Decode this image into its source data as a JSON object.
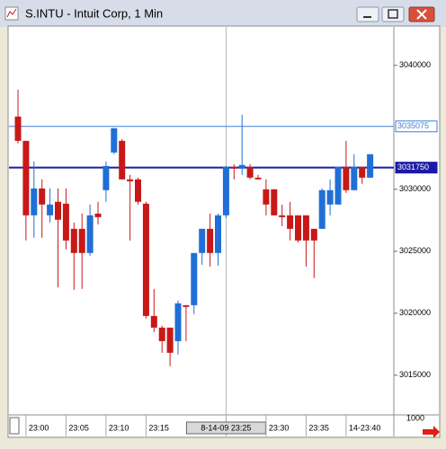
{
  "window_title": "S.INTU - Intuit Corp, 1 Min",
  "scale_label": "1000",
  "chart_data": {
    "type": "candlestick",
    "categories": [
      null,
      "23:00",
      null,
      null,
      null,
      null,
      "23:05",
      null,
      null,
      null,
      null,
      "23:10",
      null,
      null,
      null,
      null,
      "23:15",
      null,
      null,
      null,
      null,
      null,
      null,
      null,
      null,
      null,
      "8-14-09 23:25",
      null,
      null,
      null,
      null,
      "23:30",
      null,
      null,
      null,
      null,
      "23:35",
      null,
      null,
      null,
      null,
      "14-23:40",
      null,
      null,
      null
    ],
    "open": [
      3035870,
      3033910,
      3027900,
      3030070,
      3027900,
      3028990,
      3028840,
      3026810,
      3026810,
      3024860,
      3028040,
      3029930,
      3032970,
      3033910,
      3030800,
      3030800,
      3028840,
      3019780,
      3018840,
      3018840,
      3017750,
      3020650,
      3020650,
      3024860,
      3026810,
      3024860,
      3027900,
      3031810,
      3031670,
      3031810,
      3030940,
      3030000,
      3030000,
      3027900,
      3027900,
      3027900,
      3027900,
      3026810,
      3026810,
      3028770,
      3028770,
      3031810,
      3029930,
      3031810,
      3030940
    ],
    "high": [
      3038040,
      3033910,
      3032250,
      3030800,
      3030070,
      3030070,
      3030070,
      3027320,
      3028040,
      3028770,
      3028990,
      3032250,
      3034930,
      3034060,
      3031160,
      3030940,
      3028990,
      3021960,
      3018990,
      3018840,
      3021020,
      3020650,
      3024860,
      3026810,
      3028040,
      3028040,
      3031880,
      3032030,
      3036015,
      3032030,
      3031160,
      3030800,
      3030000,
      3028770,
      3028990,
      3027900,
      3027900,
      3026810,
      3030070,
      3030800,
      3031810,
      3033910,
      3032830,
      3031810,
      3032830
    ],
    "low": [
      3033700,
      3025870,
      3026090,
      3026090,
      3027320,
      3022100,
      3025150,
      3021890,
      3021960,
      3024640,
      3027170,
      3028990,
      3032830,
      3030800,
      3025870,
      3028770,
      3019570,
      3018480,
      3016810,
      3015730,
      3016670,
      3017750,
      3019930,
      3023910,
      3023770,
      3023840,
      3027680,
      3030800,
      3031160,
      3030800,
      3030800,
      3027900,
      3027900,
      3027030,
      3025870,
      3025720,
      3023770,
      3022830,
      3026810,
      3027900,
      3028770,
      3029710,
      3029930,
      3030440,
      3030940
    ],
    "close": [
      3033910,
      3027900,
      3030070,
      3028770,
      3028770,
      3027540,
      3025870,
      3024860,
      3024860,
      3027900,
      3027750,
      3031880,
      3034930,
      3030800,
      3030650,
      3028990,
      3019780,
      3018840,
      3017750,
      3016810,
      3020800,
      3020510,
      3024860,
      3026810,
      3024860,
      3027900,
      3031810,
      3031670,
      3031960,
      3030940,
      3030800,
      3028770,
      3027900,
      3027750,
      3026810,
      3025870,
      3025870,
      3025870,
      3029930,
      3029930,
      3031810,
      3029930,
      3031810,
      3030940,
      3032830
    ],
    "up_color": "#1f6fd6",
    "down_color": "#c81818",
    "ylim": [
      3011800,
      3043100
    ],
    "yticks": [
      3015000,
      3020000,
      3025000,
      3030000,
      3040000
    ],
    "hlines": [
      {
        "value": 3035075,
        "color": "#3d7fd6",
        "label": "3035075"
      },
      {
        "value": 3031750,
        "color": "#1a1aa6",
        "label": "3031750"
      }
    ],
    "crosshair_index": 26
  }
}
